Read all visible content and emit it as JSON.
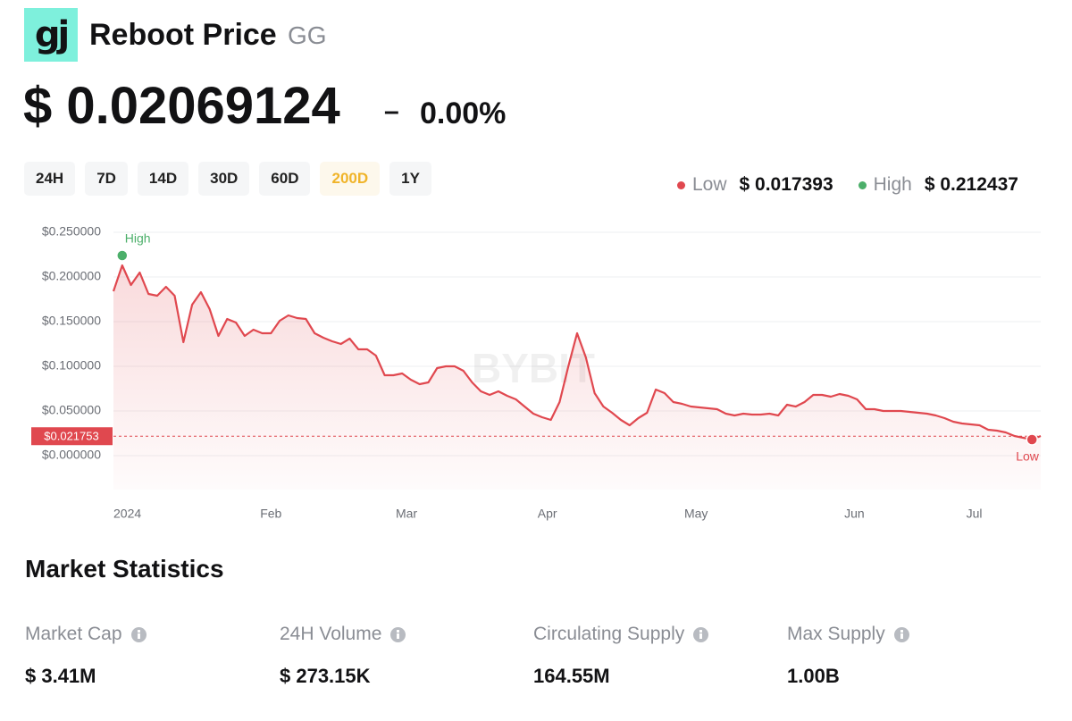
{
  "header": {
    "logo": "gj",
    "title": "Reboot Price",
    "symbol": "GG",
    "price": "$ 0.02069124",
    "change_sign": "–",
    "change": "0.00%"
  },
  "periods": {
    "options": [
      "24H",
      "7D",
      "14D",
      "30D",
      "60D",
      "200D",
      "1Y"
    ],
    "active": "200D"
  },
  "range": {
    "low": {
      "label": "Low",
      "value": "$ 0.017393"
    },
    "high": {
      "label": "High",
      "value": "$ 0.212437"
    }
  },
  "chart_data": {
    "type": "line",
    "watermark": "BYBIT",
    "series": [
      {
        "color": "#e0484f",
        "values": [
          0.184,
          0.213,
          0.191,
          0.205,
          0.181,
          0.179,
          0.189,
          0.179,
          0.127,
          0.169,
          0.183,
          0.164,
          0.134,
          0.153,
          0.149,
          0.134,
          0.141,
          0.137,
          0.137,
          0.151,
          0.157,
          0.154,
          0.153,
          0.137,
          0.132,
          0.128,
          0.125,
          0.131,
          0.119,
          0.119,
          0.112,
          0.09,
          0.09,
          0.092,
          0.085,
          0.08,
          0.082,
          0.098,
          0.1,
          0.1,
          0.095,
          0.082,
          0.072,
          0.068,
          0.072,
          0.067,
          0.063,
          0.055,
          0.047,
          0.043,
          0.04,
          0.06,
          0.1,
          0.137,
          0.11,
          0.07,
          0.055,
          0.048,
          0.04,
          0.034,
          0.042,
          0.048,
          0.074,
          0.07,
          0.06,
          0.058,
          0.055,
          0.054,
          0.053,
          0.052,
          0.047,
          0.045,
          0.047,
          0.046,
          0.046,
          0.047,
          0.045,
          0.057,
          0.055,
          0.06,
          0.068,
          0.068,
          0.066,
          0.069,
          0.067,
          0.063,
          0.052,
          0.052,
          0.05,
          0.05,
          0.05,
          0.049,
          0.048,
          0.047,
          0.045,
          0.042,
          0.038,
          0.036,
          0.035,
          0.034,
          0.029,
          0.028,
          0.026,
          0.022,
          0.02,
          0.018,
          0.022
        ]
      }
    ],
    "xlim": [
      0,
      106
    ],
    "xticks": [
      {
        "value": 0,
        "label": "2024"
      },
      {
        "value": 18,
        "label": "Feb"
      },
      {
        "value": 33.5,
        "label": "Mar"
      },
      {
        "value": 49.6,
        "label": "Apr"
      },
      {
        "value": 66.6,
        "label": "May"
      },
      {
        "value": 84.7,
        "label": "Jun"
      },
      {
        "value": 98.4,
        "label": "Jul"
      }
    ],
    "ylim": [
      -0.038,
      0.26
    ],
    "yticks": [
      {
        "value": 0.25,
        "label": "$0.250000"
      },
      {
        "value": 0.2,
        "label": "$0.200000"
      },
      {
        "value": 0.15,
        "label": "$0.150000"
      },
      {
        "value": 0.1,
        "label": "$0.100000"
      },
      {
        "value": 0.05,
        "label": "$0.050000"
      },
      {
        "value": 0,
        "label": "$0.000000"
      }
    ],
    "grid": true,
    "current": {
      "value": 0.021753,
      "label": "$0.021753"
    },
    "markers": [
      {
        "label": "High",
        "point": 1,
        "color": "#4caf6a"
      },
      {
        "label": "Low",
        "point": 105,
        "color": "#e0484f"
      }
    ]
  },
  "stats": {
    "title": "Market Statistics",
    "items": [
      {
        "label": "Market Cap",
        "value": "$ 3.41M"
      },
      {
        "label": "24H Volume",
        "value": "$ 273.15K"
      },
      {
        "label": "Circulating Supply",
        "value": "164.55M"
      },
      {
        "label": "Max Supply",
        "value": "1.00B"
      }
    ]
  }
}
